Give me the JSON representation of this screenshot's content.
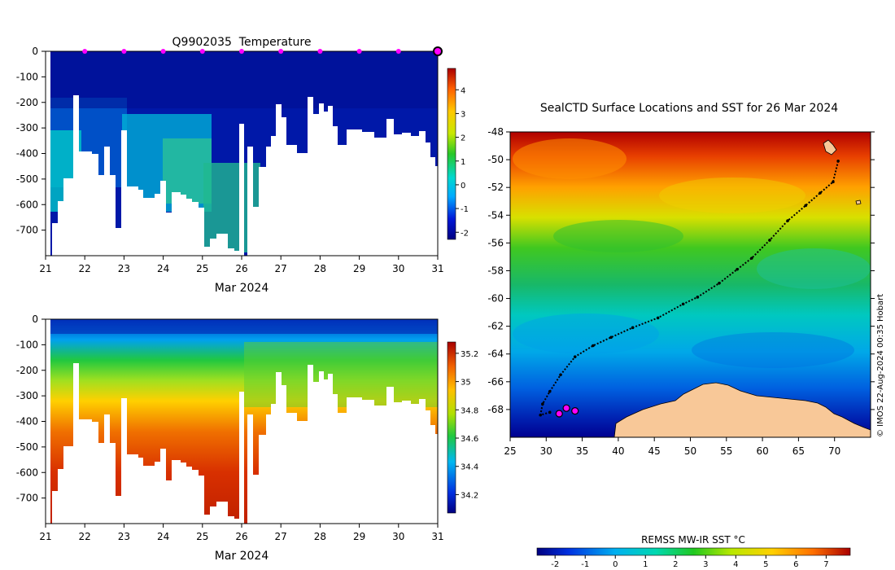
{
  "chart_data": [
    {
      "type": "heatmap",
      "title": "Q9902035  Temperature",
      "xlabel": "Mar 2024",
      "ylabel": "",
      "x_ticks": [
        "21",
        "22",
        "23",
        "24",
        "25",
        "26",
        "27",
        "28",
        "29",
        "30",
        "31"
      ],
      "x_range": [
        21,
        31
      ],
      "y_ticks": [
        "0",
        "-100",
        "-200",
        "-300",
        "-400",
        "-500",
        "-600",
        "-700"
      ],
      "y_range": [
        -800,
        0
      ],
      "colorbar": {
        "ticks": [
          "4",
          "3",
          "2",
          "1",
          "0",
          "-1",
          "-2"
        ],
        "range": [
          -2.3,
          4.9
        ]
      },
      "profile_markers_x": [
        22,
        23,
        24,
        25,
        26,
        27,
        28,
        29,
        30
      ],
      "latest_marker_x": 31
    },
    {
      "type": "heatmap",
      "title": "",
      "xlabel": "Mar 2024",
      "ylabel": "",
      "x_ticks": [
        "21",
        "22",
        "23",
        "24",
        "25",
        "26",
        "27",
        "28",
        "29",
        "30",
        "31"
      ],
      "x_range": [
        21,
        31
      ],
      "y_ticks": [
        "0",
        "-100",
        "-200",
        "-300",
        "-400",
        "-500",
        "-600",
        "-700"
      ],
      "y_range": [
        -800,
        0
      ],
      "colorbar": {
        "ticks": [
          "35.2",
          "35",
          "34.8",
          "34.6",
          "34.4",
          "34.2"
        ],
        "range": [
          34.07,
          35.28
        ]
      }
    },
    {
      "type": "heatmap",
      "title": "SealCTD Surface Locations and SST for 26 Mar 2024",
      "xlabel": "",
      "ylabel": "",
      "x_ticks": [
        "25",
        "30",
        "35",
        "40",
        "45",
        "50",
        "55",
        "60",
        "65",
        "70"
      ],
      "x_range": [
        25,
        75
      ],
      "y_ticks": [
        "-48",
        "-50",
        "-52",
        "-54",
        "-56",
        "-58",
        "-60",
        "-62",
        "-64",
        "-66",
        "-68"
      ],
      "y_range": [
        -70,
        -48
      ],
      "colorbar": {
        "label": "REMSS MW-IR SST °C",
        "ticks": [
          "-2",
          "-1",
          "0",
          "1",
          "2",
          "3",
          "4",
          "5",
          "6",
          "7"
        ],
        "range": [
          -2.6,
          7.8
        ]
      },
      "credit": "© IMOS 22-Aug-2024 00:35 Hobart",
      "track": [
        [
          70.5,
          -50.1
        ],
        [
          69.8,
          -51.6
        ],
        [
          68.0,
          -52.4
        ],
        [
          66.0,
          -53.3
        ],
        [
          63.5,
          -54.4
        ],
        [
          61.0,
          -55.8
        ],
        [
          58.5,
          -57.1
        ],
        [
          56.5,
          -57.9
        ],
        [
          54.0,
          -58.9
        ],
        [
          51.0,
          -59.9
        ],
        [
          49.0,
          -60.4
        ],
        [
          45.5,
          -61.4
        ],
        [
          42.0,
          -62.1
        ],
        [
          39.0,
          -62.8
        ],
        [
          36.5,
          -63.4
        ],
        [
          34.0,
          -64.2
        ],
        [
          32.0,
          -65.5
        ],
        [
          30.5,
          -66.7
        ],
        [
          29.5,
          -67.6
        ],
        [
          29.2,
          -68.4
        ],
        [
          30.5,
          -68.2
        ]
      ],
      "surface_fixes": [
        [
          31.8,
          -68.3
        ],
        [
          32.8,
          -67.9
        ],
        [
          34.0,
          -68.1
        ]
      ]
    }
  ]
}
